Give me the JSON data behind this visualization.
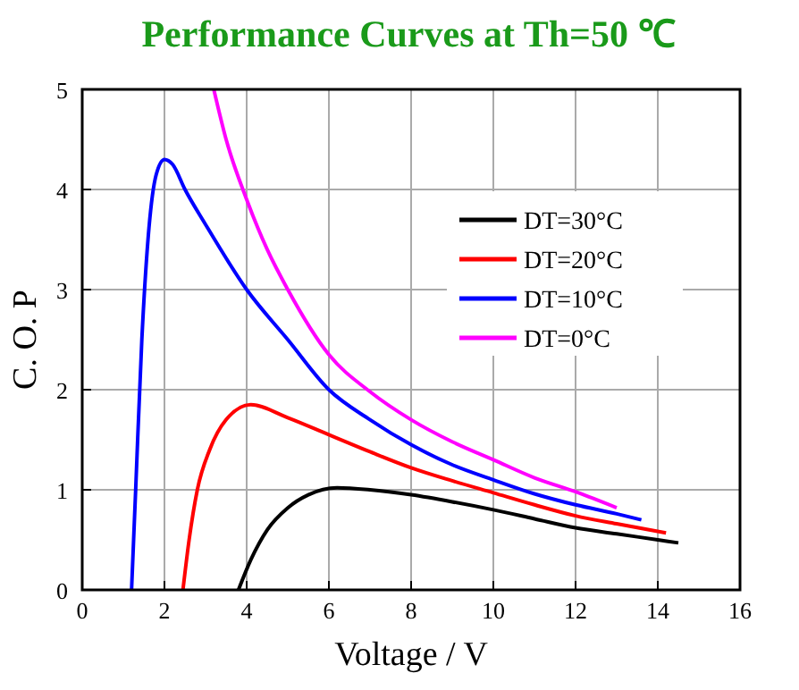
{
  "chart_data": {
    "type": "line",
    "title": "Performance Curves at Th=50 ℃",
    "xlabel": "Voltage / V",
    "ylabel": "C. O. P",
    "xlim": [
      0,
      16
    ],
    "ylim": [
      0,
      5
    ],
    "xticks": [
      0,
      2,
      4,
      6,
      8,
      10,
      12,
      14,
      16
    ],
    "yticks": [
      0,
      1,
      2,
      3,
      4,
      5
    ],
    "grid": true,
    "legend": "right",
    "marker": "none",
    "line_style": "solid",
    "series": [
      {
        "name": "DT=30°C",
        "color": "#000000",
        "x": [
          3.8,
          4.1,
          4.5,
          5,
          5.5,
          6.2,
          7,
          8,
          9,
          10,
          11,
          12,
          13,
          14,
          14.5
        ],
        "values": [
          0,
          0.3,
          0.6,
          0.82,
          0.95,
          1.02,
          1.0,
          0.95,
          0.88,
          0.8,
          0.71,
          0.62,
          0.56,
          0.5,
          0.47
        ]
      },
      {
        "name": "DT=20°C",
        "color": "#ff0000",
        "x": [
          2.45,
          2.6,
          2.8,
          3.1,
          3.5,
          4.1,
          5,
          6,
          7,
          8,
          9,
          10,
          11,
          12,
          13,
          14.2
        ],
        "values": [
          0,
          0.5,
          1.0,
          1.4,
          1.7,
          1.85,
          1.72,
          1.55,
          1.38,
          1.22,
          1.09,
          0.97,
          0.85,
          0.74,
          0.66,
          0.57
        ]
      },
      {
        "name": "DT=10°C",
        "color": "#0000ff",
        "x": [
          1.2,
          1.3,
          1.45,
          1.6,
          1.8,
          2.0,
          2.2,
          2.5,
          3,
          4,
          5,
          6,
          7,
          8,
          9,
          10,
          11,
          12,
          13,
          13.6
        ],
        "values": [
          0,
          1.0,
          2.5,
          3.5,
          4.15,
          4.3,
          4.25,
          4.0,
          3.65,
          3.0,
          2.5,
          2.0,
          1.7,
          1.45,
          1.25,
          1.1,
          0.96,
          0.85,
          0.76,
          0.7
        ]
      },
      {
        "name": "DT=0°C",
        "color": "#ff00ff",
        "x": [
          3.2,
          3.5,
          4,
          4.5,
          5,
          6,
          7,
          8,
          9,
          10,
          11,
          12,
          13
        ],
        "values": [
          5,
          4.5,
          3.9,
          3.4,
          3.0,
          2.35,
          1.98,
          1.7,
          1.48,
          1.3,
          1.12,
          0.98,
          0.82
        ]
      }
    ]
  }
}
